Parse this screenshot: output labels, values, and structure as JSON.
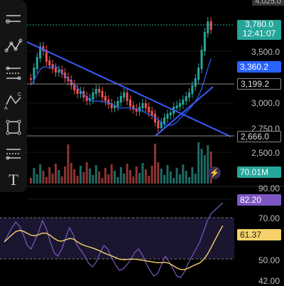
{
  "toolbar": {
    "items": [
      {
        "name": "trend-line-icon"
      },
      {
        "name": "pattern-tool-icon"
      },
      {
        "name": "fib-retracement-icon"
      },
      {
        "name": "abcd-pattern-icon"
      },
      {
        "name": "rectangle-tool-icon"
      },
      {
        "name": "parallel-channel-icon"
      },
      {
        "name": "text-tool-icon"
      }
    ],
    "text_glyph": "T"
  },
  "price_axis": {
    "top_partial": "4,025.0",
    "ticks": [
      "3,500.0",
      "3,000.0",
      "2,750.0",
      "2,500.0"
    ]
  },
  "price_tags": {
    "last_price": "3,780.0",
    "countdown": "12:41:07",
    "ma_value": "3,360.2",
    "level_1": "3,199.2",
    "level_2": "2,666.0",
    "volume": "70.01M"
  },
  "rsi_axis": {
    "ticks": [
      "90.00",
      "70.00",
      "50.00",
      "42.00"
    ]
  },
  "rsi_tags": {
    "rsi_value": "82.20",
    "rsi_ma_value": "61.37"
  },
  "colors": {
    "up": "#26a69a",
    "down": "#ef5350",
    "ma": "#2962ff",
    "last_price_tag": "#26a69a",
    "ma_tag": "#2962ff",
    "rsi_line": "#7e57c2",
    "rsi_ma_line": "#f5d36a",
    "rsi_band": "#1a1630"
  }
}
